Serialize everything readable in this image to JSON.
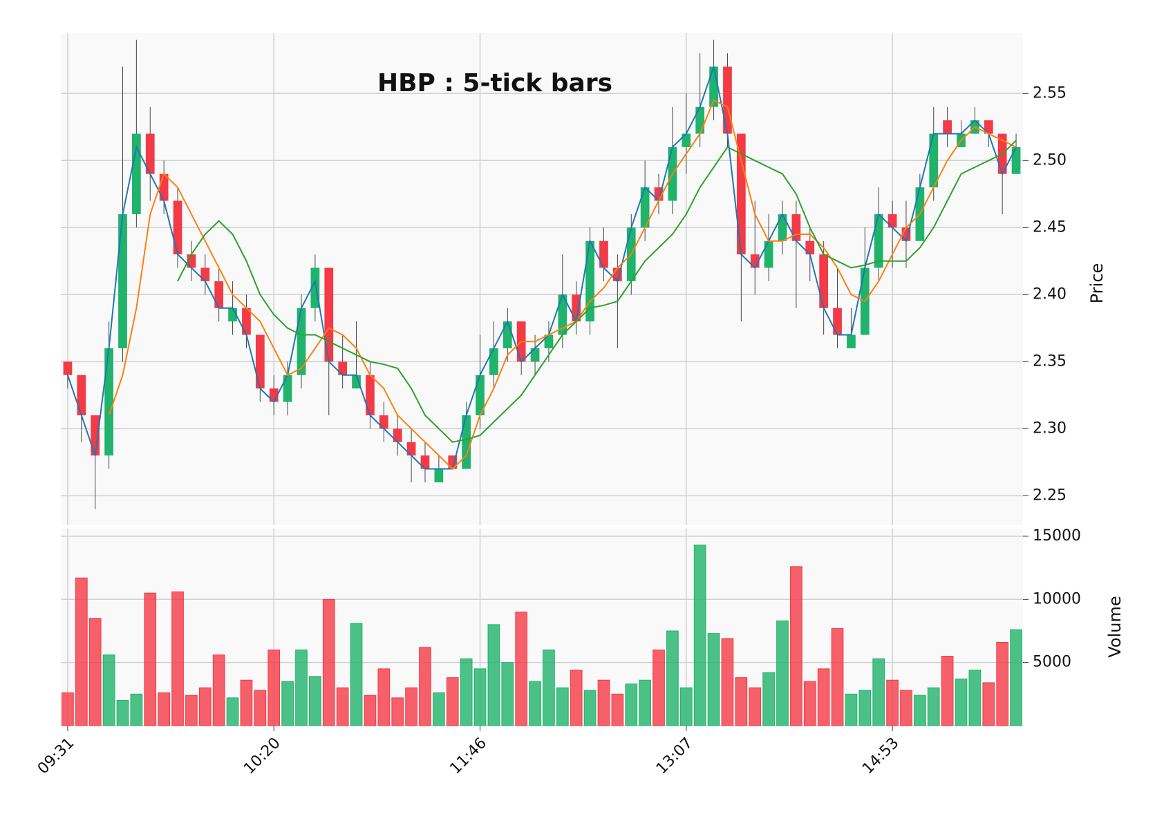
{
  "chart_data": {
    "type": "candlestick",
    "title": "HBP : 5-tick bars",
    "categories": [
      "09:31",
      null,
      null,
      null,
      null,
      null,
      null,
      null,
      null,
      null,
      null,
      null,
      null,
      null,
      null,
      "10:20",
      null,
      null,
      null,
      null,
      null,
      null,
      null,
      null,
      null,
      null,
      null,
      null,
      null,
      null,
      "11:46",
      null,
      null,
      null,
      null,
      null,
      null,
      null,
      null,
      null,
      null,
      null,
      null,
      null,
      null,
      "13:07",
      null,
      null,
      null,
      null,
      null,
      null,
      null,
      null,
      null,
      null,
      null,
      null,
      null,
      null,
      "14:53",
      null,
      null,
      null,
      null,
      null,
      null,
      null,
      null,
      null
    ],
    "open": [
      2.35,
      2.34,
      2.31,
      2.28,
      2.36,
      2.46,
      2.52,
      2.49,
      2.47,
      2.43,
      2.42,
      2.41,
      2.38,
      2.39,
      2.37,
      2.33,
      2.32,
      2.34,
      2.39,
      2.42,
      2.35,
      2.33,
      2.34,
      2.31,
      2.3,
      2.29,
      2.28,
      2.26,
      2.28,
      2.27,
      2.31,
      2.34,
      2.36,
      2.38,
      2.35,
      2.36,
      2.37,
      2.4,
      2.38,
      2.44,
      2.42,
      2.41,
      2.45,
      2.48,
      2.47,
      2.51,
      2.52,
      2.54,
      2.57,
      2.52,
      2.43,
      2.42,
      2.44,
      2.46,
      2.44,
      2.43,
      2.39,
      2.36,
      2.37,
      2.42,
      2.46,
      2.45,
      2.44,
      2.48,
      2.53,
      2.51,
      2.52,
      2.53,
      2.52,
      2.49
    ],
    "high": [
      2.35,
      2.34,
      2.31,
      2.38,
      2.57,
      2.59,
      2.54,
      2.5,
      2.48,
      2.44,
      2.43,
      2.42,
      2.41,
      2.4,
      2.37,
      2.34,
      2.35,
      2.4,
      2.43,
      2.42,
      2.37,
      2.38,
      2.35,
      2.32,
      2.31,
      2.3,
      2.29,
      2.28,
      2.28,
      2.32,
      2.37,
      2.38,
      2.39,
      2.38,
      2.37,
      2.38,
      2.43,
      2.41,
      2.45,
      2.45,
      2.43,
      2.46,
      2.5,
      2.49,
      2.54,
      2.55,
      2.58,
      2.59,
      2.58,
      2.52,
      2.47,
      2.46,
      2.47,
      2.47,
      2.45,
      2.44,
      2.42,
      2.39,
      2.45,
      2.48,
      2.47,
      2.47,
      2.49,
      2.54,
      2.54,
      2.53,
      2.54,
      2.53,
      2.52,
      2.52
    ],
    "low": [
      2.33,
      2.29,
      2.24,
      2.27,
      2.35,
      2.45,
      2.47,
      2.46,
      2.42,
      2.41,
      2.4,
      2.38,
      2.37,
      2.36,
      2.32,
      2.31,
      2.31,
      2.33,
      2.38,
      2.31,
      2.33,
      2.33,
      2.3,
      2.29,
      2.28,
      2.26,
      2.26,
      2.26,
      2.27,
      2.27,
      2.3,
      2.33,
      2.35,
      2.34,
      2.34,
      2.35,
      2.36,
      2.37,
      2.37,
      2.41,
      2.36,
      2.4,
      2.44,
      2.46,
      2.46,
      2.49,
      2.51,
      2.53,
      2.51,
      2.38,
      2.4,
      2.41,
      2.43,
      2.39,
      2.41,
      2.37,
      2.36,
      2.36,
      2.37,
      2.41,
      2.42,
      2.42,
      2.44,
      2.47,
      2.51,
      2.51,
      2.52,
      2.51,
      2.46,
      2.49
    ],
    "close": [
      2.34,
      2.31,
      2.28,
      2.36,
      2.46,
      2.52,
      2.49,
      2.47,
      2.43,
      2.42,
      2.41,
      2.39,
      2.39,
      2.37,
      2.33,
      2.32,
      2.34,
      2.39,
      2.42,
      2.35,
      2.34,
      2.34,
      2.31,
      2.3,
      2.29,
      2.28,
      2.27,
      2.27,
      2.27,
      2.31,
      2.34,
      2.36,
      2.38,
      2.35,
      2.36,
      2.37,
      2.4,
      2.38,
      2.44,
      2.42,
      2.41,
      2.45,
      2.48,
      2.47,
      2.51,
      2.52,
      2.54,
      2.57,
      2.52,
      2.43,
      2.42,
      2.44,
      2.46,
      2.44,
      2.43,
      2.39,
      2.37,
      2.37,
      2.42,
      2.46,
      2.45,
      2.44,
      2.48,
      2.52,
      2.52,
      2.52,
      2.53,
      2.52,
      2.49,
      2.51
    ],
    "up_color": "#1fb36b",
    "down_color": "#f43a46",
    "ylim": [
      2.228,
      2.595
    ],
    "yticks": [
      2.25,
      {
        "value": 2.3,
        "label": "2.30"
      },
      2.35,
      {
        "value": 2.4,
        "label": "2.40"
      },
      2.45,
      {
        "value": 2.5,
        "label": "2.50"
      },
      2.55
    ],
    "ylabel": "Price",
    "grid": true,
    "series": [
      {
        "color": "#1f77b4",
        "values": [
          2.34,
          2.31,
          2.28,
          2.36,
          2.46,
          2.51,
          2.49,
          2.47,
          2.43,
          2.42,
          2.41,
          2.39,
          2.39,
          2.37,
          2.33,
          2.32,
          2.34,
          2.39,
          2.41,
          2.35,
          2.34,
          2.34,
          2.31,
          2.3,
          2.29,
          2.28,
          2.27,
          2.27,
          2.27,
          2.31,
          2.34,
          2.36,
          2.38,
          2.35,
          2.36,
          2.37,
          2.4,
          2.38,
          2.44,
          2.42,
          2.41,
          2.45,
          2.48,
          2.47,
          2.51,
          2.52,
          2.54,
          2.57,
          2.52,
          2.43,
          2.42,
          2.44,
          2.46,
          2.44,
          2.43,
          2.39,
          2.37,
          2.37,
          2.42,
          2.46,
          2.45,
          2.44,
          2.48,
          2.52,
          2.52,
          2.52,
          2.53,
          2.52,
          2.49,
          2.51
        ]
      },
      {
        "color": "#ff7f0e",
        "values": [
          null,
          null,
          null,
          2.31,
          2.34,
          2.39,
          2.46,
          2.49,
          2.48,
          2.46,
          2.44,
          2.42,
          2.4,
          2.39,
          2.38,
          2.36,
          2.34,
          2.345,
          2.36,
          2.375,
          2.37,
          2.36,
          2.34,
          2.33,
          2.31,
          2.3,
          2.29,
          2.28,
          2.27,
          2.28,
          2.31,
          2.33,
          2.355,
          2.365,
          2.365,
          2.37,
          2.375,
          2.38,
          2.395,
          2.405,
          2.42,
          2.43,
          2.45,
          2.47,
          2.49,
          2.505,
          2.52,
          2.545,
          2.54,
          2.5,
          2.46,
          2.44,
          2.44,
          2.445,
          2.445,
          2.435,
          2.42,
          2.4,
          2.395,
          2.41,
          2.43,
          2.45,
          2.46,
          2.48,
          2.5,
          2.515,
          2.525,
          2.52,
          2.515,
          2.51
        ]
      },
      {
        "color": "#2ca02c",
        "values": [
          null,
          null,
          null,
          null,
          null,
          null,
          null,
          null,
          2.41,
          2.43,
          2.445,
          2.455,
          2.445,
          2.425,
          2.4,
          2.385,
          2.375,
          2.37,
          2.37,
          2.365,
          2.36,
          2.355,
          2.35,
          2.348,
          2.345,
          2.33,
          2.31,
          2.3,
          2.29,
          2.292,
          2.295,
          2.305,
          2.315,
          2.325,
          2.34,
          2.355,
          2.37,
          2.38,
          2.39,
          2.392,
          2.395,
          2.41,
          2.425,
          2.435,
          2.445,
          2.46,
          2.48,
          2.495,
          2.51,
          2.505,
          2.5,
          2.495,
          2.49,
          2.475,
          2.45,
          2.43,
          2.425,
          2.42,
          2.422,
          2.425,
          2.425,
          2.425,
          2.435,
          2.45,
          2.47,
          2.49,
          2.495,
          2.5,
          2.505,
          2.515
        ]
      }
    ],
    "volume": {
      "values": [
        2600,
        11700,
        8500,
        5600,
        2000,
        2500,
        10500,
        2600,
        10600,
        2400,
        3000,
        5600,
        2200,
        3600,
        2800,
        6000,
        3500,
        6000,
        3900,
        10000,
        3000,
        8100,
        2400,
        4500,
        2200,
        3000,
        6200,
        2600,
        3800,
        5300,
        4500,
        8000,
        5000,
        9000,
        3500,
        6000,
        3000,
        4400,
        2800,
        3600,
        2500,
        3300,
        3600,
        6000,
        7500,
        3000,
        14300,
        7300,
        6900,
        3800,
        3000,
        4200,
        8300,
        12600,
        3500,
        4500,
        7700,
        2500,
        2800,
        5300,
        3600,
        2800,
        2400,
        3000,
        5500,
        3700,
        4400,
        3400,
        6600,
        7600
      ],
      "ylim": [
        0,
        15600
      ],
      "yticks": [
        5000,
        10000,
        15000
      ],
      "ylabel": "Volume"
    }
  }
}
